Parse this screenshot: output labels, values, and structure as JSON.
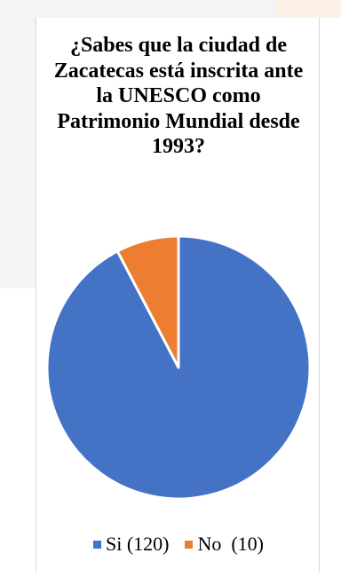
{
  "chart_data": {
    "type": "pie",
    "title": "¿Sabes que la ciudad de Zacatecas está inscrita ante la UNESCO como Patrimonio Mundial desde 1993?",
    "categories": [
      "Si (120)",
      "No  (10)"
    ],
    "values": [
      120,
      10
    ],
    "colors": [
      "#4472c4",
      "#ed7d31"
    ],
    "legend_position": "bottom"
  }
}
